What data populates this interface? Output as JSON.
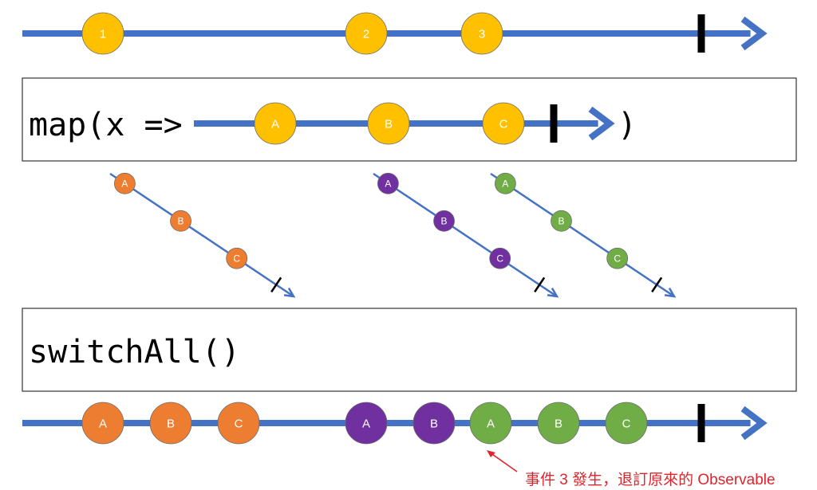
{
  "colors": {
    "timeline": "#4472C4",
    "source": "#FFC000",
    "orange": "#ED7D31",
    "purple": "#7030A0",
    "green": "#70AD47",
    "annotation": "#E0242B"
  },
  "source_stream": {
    "marbles": [
      {
        "label": "1",
        "color": "source"
      },
      {
        "label": "2",
        "color": "source"
      },
      {
        "label": "3",
        "color": "source"
      }
    ],
    "completed": true
  },
  "map_operator": {
    "prefix": "map(x =>",
    "suffix": ")",
    "marbles": [
      {
        "label": "A",
        "color": "source"
      },
      {
        "label": "B",
        "color": "source"
      },
      {
        "label": "C",
        "color": "source"
      }
    ],
    "completed": true
  },
  "inner_streams": [
    {
      "color": "orange",
      "marbles": [
        "A",
        "B",
        "C"
      ],
      "completed": true
    },
    {
      "color": "purple",
      "marbles": [
        "A",
        "B",
        "C"
      ],
      "completed": true
    },
    {
      "color": "green",
      "marbles": [
        "A",
        "B",
        "C"
      ],
      "completed": true
    }
  ],
  "switch_operator": {
    "label": "switchAll()"
  },
  "output_stream": {
    "marbles": [
      {
        "label": "A",
        "color": "orange"
      },
      {
        "label": "B",
        "color": "orange"
      },
      {
        "label": "C",
        "color": "orange"
      },
      {
        "label": "A",
        "color": "purple"
      },
      {
        "label": "B",
        "color": "purple"
      },
      {
        "label": "A",
        "color": "green"
      },
      {
        "label": "B",
        "color": "green"
      },
      {
        "label": "C",
        "color": "green"
      }
    ],
    "completed": true
  },
  "annotation": {
    "text": "事件 3 發生，退訂原來的 Observable"
  }
}
